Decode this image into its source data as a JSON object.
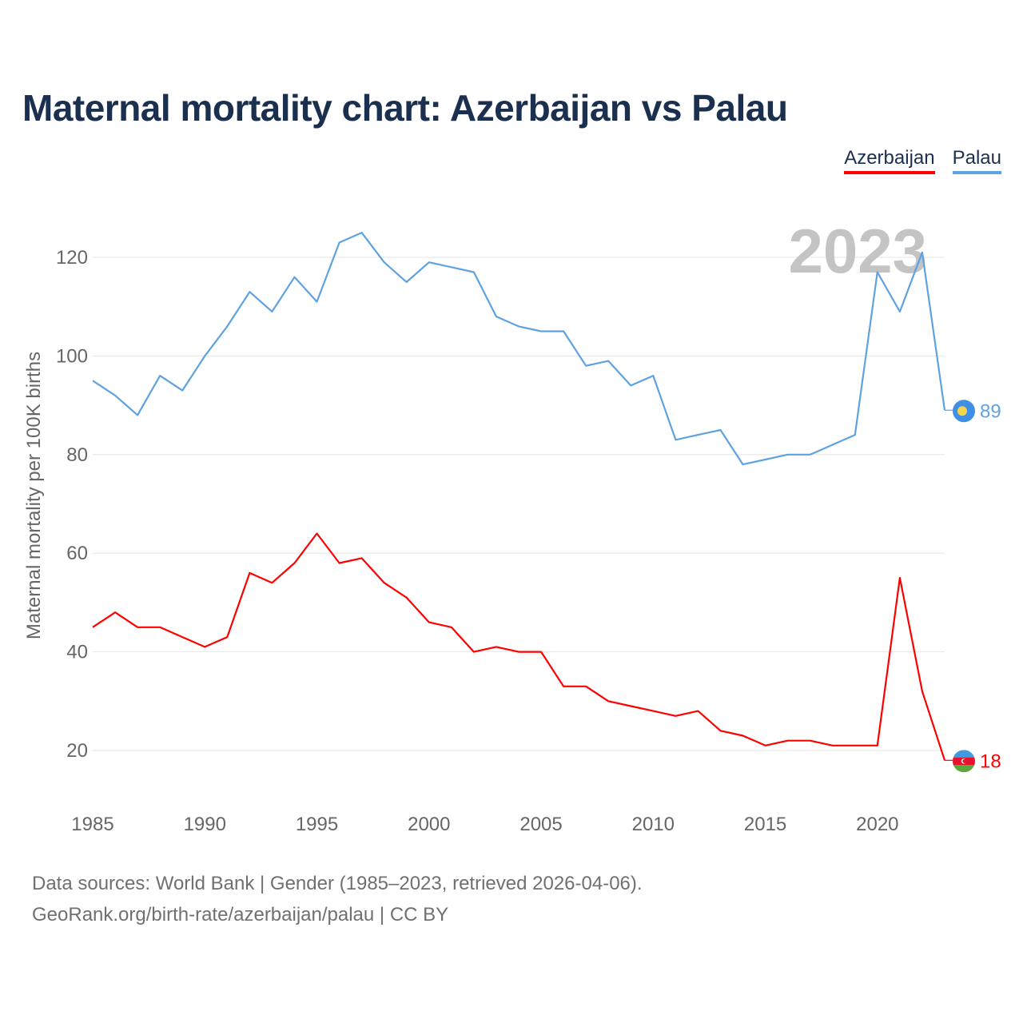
{
  "page": {
    "title": "Maternal mortality chart: Azerbaijan vs Palau",
    "footer_line1": "Data sources: World Bank | Gender (1985–2023, retrieved 2026-04-06).",
    "footer_line2": "GeoRank.org/birth-rate/azerbaijan/palau | CC BY"
  },
  "legend": {
    "items": [
      {
        "label": "Azerbaijan",
        "color": "#ff0000"
      },
      {
        "label": "Palau",
        "color": "#5fa2e0"
      }
    ]
  },
  "chart_data": {
    "type": "line",
    "title": "Maternal mortality chart: Azerbaijan vs Palau",
    "xlabel": "",
    "ylabel": "Maternal mortality per 100K births",
    "year_watermark": "2023",
    "xlim": [
      1985,
      2023
    ],
    "ylim": [
      10,
      130
    ],
    "x_ticks": [
      1985,
      1990,
      1995,
      2000,
      2005,
      2010,
      2015,
      2020
    ],
    "y_ticks": [
      20,
      40,
      60,
      80,
      100,
      120
    ],
    "grid": true,
    "x": [
      1985,
      1986,
      1987,
      1988,
      1989,
      1990,
      1991,
      1992,
      1993,
      1994,
      1995,
      1996,
      1997,
      1998,
      1999,
      2000,
      2001,
      2002,
      2003,
      2004,
      2005,
      2006,
      2007,
      2008,
      2009,
      2010,
      2011,
      2012,
      2013,
      2014,
      2015,
      2016,
      2017,
      2018,
      2019,
      2020,
      2021,
      2022,
      2023
    ],
    "series": [
      {
        "name": "Palau",
        "color": "#5fa2e0",
        "end_label": "89",
        "flag_icon": "palau-flag-icon",
        "values": [
          95,
          92,
          88,
          96,
          93,
          100,
          106,
          113,
          109,
          116,
          111,
          123,
          125,
          119,
          115,
          119,
          118,
          117,
          108,
          106,
          105,
          105,
          98,
          99,
          94,
          96,
          83,
          84,
          85,
          78,
          79,
          80,
          80,
          82,
          84,
          117,
          109,
          121,
          89
        ]
      },
      {
        "name": "Azerbaijan",
        "color": "#ff0000",
        "end_label": "18",
        "flag_icon": "azerbaijan-flag-icon",
        "values": [
          45,
          48,
          45,
          45,
          43,
          41,
          43,
          56,
          54,
          58,
          64,
          58,
          59,
          54,
          51,
          46,
          45,
          40,
          41,
          40,
          40,
          33,
          33,
          30,
          29,
          28,
          27,
          28,
          24,
          23,
          21,
          22,
          22,
          21,
          21,
          21,
          55,
          32,
          18
        ]
      }
    ]
  }
}
